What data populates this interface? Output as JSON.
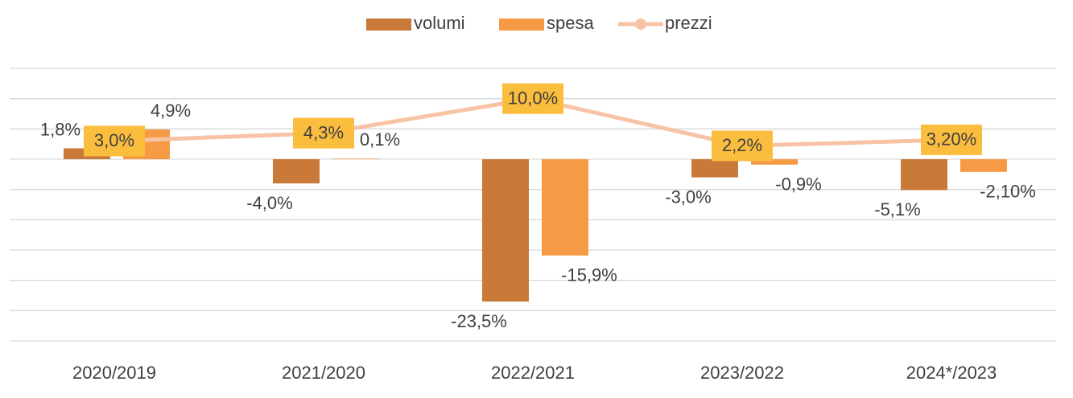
{
  "chart_data": {
    "type": "bar_line",
    "categories": [
      "2020/2019",
      "2021/2020",
      "2022/2021",
      "2023/2022",
      "2024*/2023"
    ],
    "series": [
      {
        "name": "volumi",
        "color": "#c97a38",
        "values": [
          1.8,
          -4.0,
          -23.5,
          -3.0,
          -5.1
        ],
        "value_labels": [
          "1,8%",
          "-4,0%",
          "-23,5%",
          "-3,0%",
          "-5,1%"
        ]
      },
      {
        "name": "spesa",
        "color": "#f79a45",
        "values": [
          4.9,
          0.1,
          -15.9,
          -0.9,
          -2.1
        ],
        "value_labels": [
          "4,9%",
          "0,1%",
          "-15,9%",
          "-0,9%",
          "-2,10%"
        ]
      },
      {
        "name": "prezzi",
        "type": "line",
        "color": "#f8c3a5",
        "label_color": "#fbbd3e",
        "values": [
          3.0,
          4.3,
          10.0,
          2.2,
          3.2
        ],
        "value_labels": [
          "3,0%",
          "4,3%",
          "10,0%",
          "2,2%",
          "3,20%"
        ]
      }
    ],
    "ylim": [
      -30,
      15
    ],
    "yticks": [
      -30,
      -25,
      -20,
      -15,
      -10,
      -5,
      0,
      5,
      10,
      15
    ],
    "grid": true
  }
}
